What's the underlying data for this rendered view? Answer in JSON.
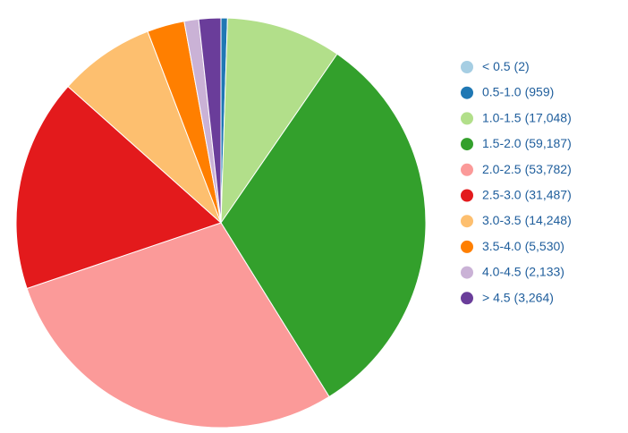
{
  "chart_data": {
    "type": "pie",
    "categories": [
      "< 0.5",
      "0.5-1.0",
      "1.0-1.5",
      "1.5-2.0",
      "2.0-2.5",
      "2.5-3.0",
      "3.0-3.5",
      "3.5-4.0",
      "4.0-4.5",
      "> 4.5"
    ],
    "values": [
      2,
      959,
      17048,
      59187,
      53782,
      31487,
      14248,
      5530,
      2133,
      3264
    ],
    "value_labels": [
      "(2)",
      "(959)",
      "(17,048)",
      "(59,187)",
      "(53,782)",
      "(31,487)",
      "(14,248)",
      "(5,530)",
      "(2,133)",
      "(3,264)"
    ],
    "colors": [
      "#a6cee3",
      "#1f78b4",
      "#b2df8a",
      "#33a02c",
      "#fb9a99",
      "#e31a1c",
      "#fdbf6f",
      "#ff7f00",
      "#cab2d6",
      "#6a3d9a"
    ],
    "legend": "right"
  }
}
